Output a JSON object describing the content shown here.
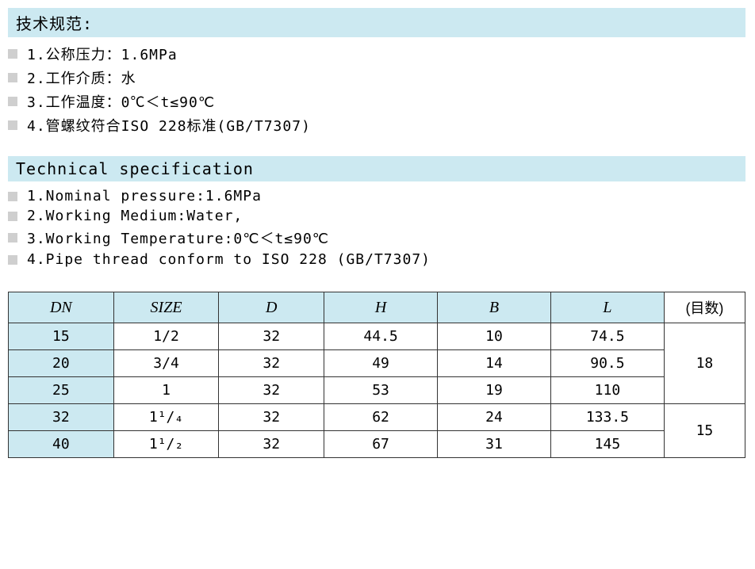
{
  "spec_cn": {
    "header": "技术规范:",
    "items": [
      "1.公称压力：1.6MPa",
      "2.工作介质：水",
      "3.工作温度：0℃＜t≤90℃",
      "4.管螺纹符合ISO 228标准(GB/T7307)"
    ]
  },
  "spec_en": {
    "header": "Technical specification",
    "items": [
      "1.Nominal pressure:1.6MPa",
      "2.Working Medium:Water,",
      "3.Working Temperature:0℃＜t≤90℃",
      "4.Pipe thread conform to ISO 228 (GB/T7307)"
    ]
  },
  "table": {
    "columns": [
      "DN",
      "SIZE",
      "D",
      "H",
      "B",
      "L",
      "(目数)"
    ],
    "colors": {
      "header_bg": "#cce9f1",
      "dn_bg": "#cce9f1",
      "border": "#333333",
      "background": "#ffffff",
      "text": "#000000"
    },
    "rows": [
      {
        "dn": "15",
        "size": "1/2",
        "d": "32",
        "h": "44.5",
        "b": "10",
        "l": "74.5"
      },
      {
        "dn": "20",
        "size": "3/4",
        "d": "32",
        "h": "49",
        "b": "14",
        "l": "90.5"
      },
      {
        "dn": "25",
        "size": "1",
        "d": "32",
        "h": "53",
        "b": "19",
        "l": "110"
      },
      {
        "dn": "32",
        "size": "1¹/₄",
        "d": "32",
        "h": "62",
        "b": "24",
        "l": "133.5"
      },
      {
        "dn": "40",
        "size": "1¹/₂",
        "d": "32",
        "h": "67",
        "b": "31",
        "l": "145"
      }
    ],
    "mesh_groups": [
      {
        "value": "18",
        "span": 3
      },
      {
        "value": "15",
        "span": 2
      }
    ]
  }
}
